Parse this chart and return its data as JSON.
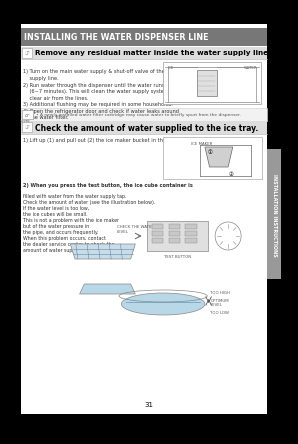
{
  "outer_bg": "#000000",
  "page_bg": "#ffffff",
  "header_bg": "#777777",
  "header_text": "INSTALLING THE WATER DISPENSER LINE",
  "header_text_color": "#ffffff",
  "section1_title_bg": "#dddddd",
  "section1_title": "Remove any residual matter inside the water supply line",
  "section1_steps": [
    "1) Turn on the main water supply & shut-off valve of the water",
    "    supply line.",
    "2) Run water through the dispenser until the water runs clear",
    "    (6~7 minutes). This will clean the water supply system and",
    "    clear air from the lines.",
    "3) Additional flushing may be required in some households.",
    "4) Open the refrigerator door and check if water leaks around",
    "    the water filter."
  ],
  "note_text": "• A newly-installed water filter cartridge may cause water to briefly spurt from the dispenser.",
  "section2_title_bg": "#dddddd",
  "section2_title": "Check the amount of water supplied to the ice tray.",
  "section2_step1": "1) Lift up (1) and pull out (2) the ice maker bucket in the freezer.",
  "section2_step2_intro": "2) When you press the test button, the ice cube container is",
  "section2_step2_lines": [
    "filled with water from the water supply tap.",
    "Check the amount of water (see the illustration below).",
    "If the water level is too low,",
    "the ice cubes will be small.",
    "This is not a problem with the ice maker",
    "but of the water pressure in",
    "the pipe, and occurs frequently.",
    "When this problem occurs, contact",
    "the dealer service center to check the",
    "amount of water supplied."
  ],
  "ice_label": "ICE",
  "water_label": "WATER",
  "ice_maker_label": "ICE MAKER",
  "check_water_label": "CHECK THE WATER\nLEVEL",
  "test_button_label": "TEST BUTTON",
  "too_high_label": "TOO HIGH",
  "optimum_label": "OPTIMUM\nLEVEL",
  "too_low_label": "TOO LOW",
  "note_label": "NOTE",
  "side_label": "INSTALLATION INSTRUCTIONS",
  "sidebar_bg": "#999999",
  "sidebar_text_color": "#ffffff",
  "page_number": "31",
  "text_color": "#333333",
  "light_gray": "#e8e8e8",
  "mid_gray": "#aaaaaa",
  "line_color": "#bbbbbb"
}
